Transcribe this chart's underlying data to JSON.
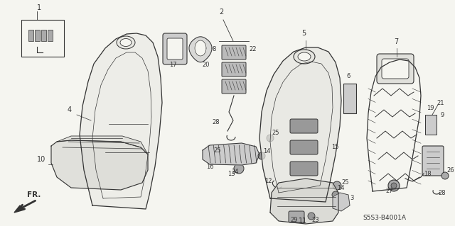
{
  "bg_color": "#f5f5f0",
  "line_color": "#333333",
  "diagram_code": "S5S3-B4001A",
  "figsize": [
    6.4,
    3.19
  ],
  "dpi": 100
}
